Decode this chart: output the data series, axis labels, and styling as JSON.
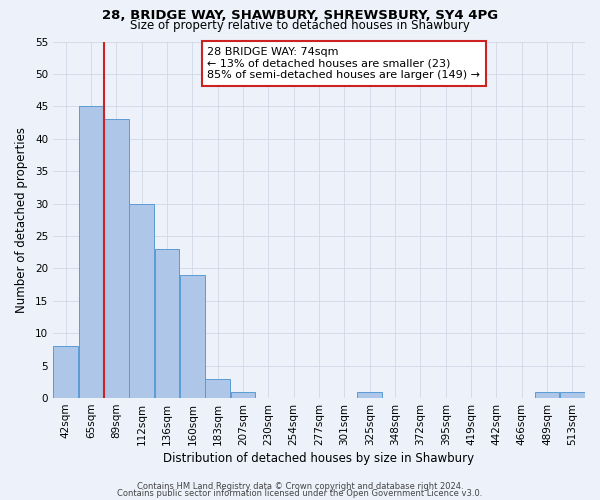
{
  "title1": "28, BRIDGE WAY, SHAWBURY, SHREWSBURY, SY4 4PG",
  "title2": "Size of property relative to detached houses in Shawbury",
  "xlabel": "Distribution of detached houses by size in Shawbury",
  "ylabel": "Number of detached properties",
  "bar_labels": [
    "42sqm",
    "65sqm",
    "89sqm",
    "112sqm",
    "136sqm",
    "160sqm",
    "183sqm",
    "207sqm",
    "230sqm",
    "254sqm",
    "277sqm",
    "301sqm",
    "325sqm",
    "348sqm",
    "372sqm",
    "395sqm",
    "419sqm",
    "442sqm",
    "466sqm",
    "489sqm",
    "513sqm"
  ],
  "bar_values": [
    8,
    45,
    43,
    30,
    23,
    19,
    3,
    1,
    0,
    0,
    0,
    0,
    1,
    0,
    0,
    0,
    0,
    0,
    0,
    1,
    1
  ],
  "bar_color": "#aec6e8",
  "bar_edge_color": "#5b9bd5",
  "red_line_after_bar": 1,
  "ylim": [
    0,
    55
  ],
  "yticks": [
    0,
    5,
    10,
    15,
    20,
    25,
    30,
    35,
    40,
    45,
    50,
    55
  ],
  "annotation_box_text": "28 BRIDGE WAY: 74sqm\n← 13% of detached houses are smaller (23)\n85% of semi-detached houses are larger (149) →",
  "footer1": "Contains HM Land Registry data © Crown copyright and database right 2024.",
  "footer2": "Contains public sector information licensed under the Open Government Licence v3.0.",
  "bg_color": "#edf2fa",
  "grid_color": "#d0d8e8",
  "red_line_color": "#cc2222",
  "title1_fontsize": 9.5,
  "title2_fontsize": 8.5,
  "xlabel_fontsize": 8.5,
  "ylabel_fontsize": 8.5,
  "tick_fontsize": 7.5,
  "annotation_fontsize": 8,
  "footer_fontsize": 6
}
